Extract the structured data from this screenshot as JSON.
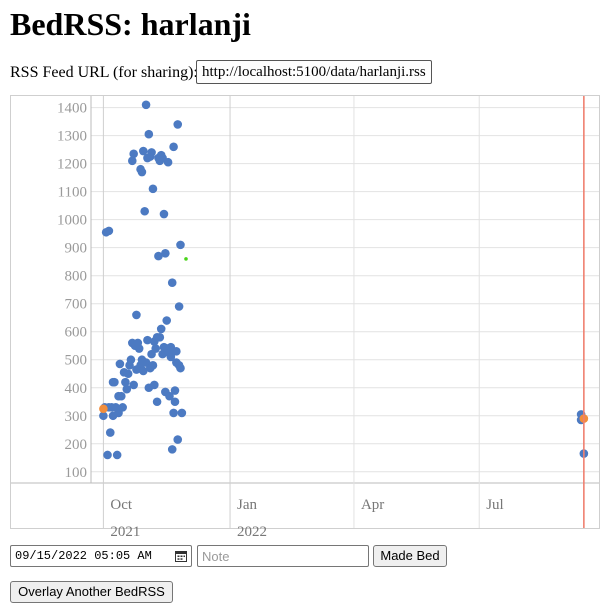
{
  "page": {
    "title": "BedRSS: harlanji"
  },
  "rss": {
    "label": "RSS Feed URL (for sharing):",
    "url": "http://localhost:5100/data/harlanji.rss"
  },
  "controls": {
    "datetime_value": "09/15/2022 05:05 AM",
    "note_placeholder": "Note",
    "made_bed_label": "Made Bed",
    "overlay_label": "Overlay Another BedRSS"
  },
  "colors": {
    "point": "#4c7ac2",
    "highlight": "#f28e3c",
    "marker_line": "#f08070",
    "small_point": "#49d41a",
    "grid": "#e2e2e2",
    "axis": "#bbbbbb"
  },
  "chart_data": {
    "type": "scatter",
    "title": "",
    "xlabel": "",
    "ylabel": "",
    "x_type": "date",
    "xlim": [
      "2021-09-22",
      "2022-09-26"
    ],
    "ylim": [
      60,
      1420
    ],
    "y_ticks": [
      100,
      200,
      300,
      400,
      500,
      600,
      700,
      800,
      900,
      1000,
      1100,
      1200,
      1300,
      1400
    ],
    "x_ticks": [
      {
        "date": "2021-10-01",
        "label": "Oct",
        "year": "2021"
      },
      {
        "date": "2022-01-01",
        "label": "Jan",
        "year": "2022"
      },
      {
        "date": "2022-04-01",
        "label": "Apr",
        "year": ""
      },
      {
        "date": "2022-07-01",
        "label": "Jul",
        "year": ""
      }
    ],
    "grid": true,
    "marker_line_date": "2022-09-15",
    "series": [
      {
        "role": "main",
        "color": "#4c7ac2",
        "points": [
          [
            "2021-10-01",
            300
          ],
          [
            "2021-10-02",
            330
          ],
          [
            "2021-10-03",
            955
          ],
          [
            "2021-10-04",
            160
          ],
          [
            "2021-10-05",
            960
          ],
          [
            "2021-10-05",
            330
          ],
          [
            "2021-10-06",
            240
          ],
          [
            "2021-10-07",
            330
          ],
          [
            "2021-10-08",
            420
          ],
          [
            "2021-10-08",
            300
          ],
          [
            "2021-10-09",
            420
          ],
          [
            "2021-10-10",
            330
          ],
          [
            "2021-10-11",
            160
          ],
          [
            "2021-10-12",
            370
          ],
          [
            "2021-10-12",
            310
          ],
          [
            "2021-10-13",
            485
          ],
          [
            "2021-10-14",
            370
          ],
          [
            "2021-10-15",
            330
          ],
          [
            "2021-10-16",
            455
          ],
          [
            "2021-10-17",
            420
          ],
          [
            "2021-10-18",
            395
          ],
          [
            "2021-10-19",
            450
          ],
          [
            "2021-10-20",
            480
          ],
          [
            "2021-10-21",
            500
          ],
          [
            "2021-10-22",
            1210
          ],
          [
            "2021-10-22",
            560
          ],
          [
            "2021-10-23",
            1235
          ],
          [
            "2021-10-23",
            410
          ],
          [
            "2021-10-24",
            550
          ],
          [
            "2021-10-25",
            660
          ],
          [
            "2021-10-25",
            465
          ],
          [
            "2021-10-26",
            560
          ],
          [
            "2021-10-27",
            540
          ],
          [
            "2021-10-28",
            1180
          ],
          [
            "2021-10-28",
            480
          ],
          [
            "2021-10-29",
            1170
          ],
          [
            "2021-10-29",
            500
          ],
          [
            "2021-10-30",
            1245
          ],
          [
            "2021-10-30",
            460
          ],
          [
            "2021-10-31",
            1030
          ],
          [
            "2021-11-01",
            1410
          ],
          [
            "2021-11-01",
            490
          ],
          [
            "2021-11-02",
            1220
          ],
          [
            "2021-11-02",
            570
          ],
          [
            "2021-11-03",
            1305
          ],
          [
            "2021-11-03",
            400
          ],
          [
            "2021-11-04",
            1225
          ],
          [
            "2021-11-04",
            470
          ],
          [
            "2021-11-05",
            1240
          ],
          [
            "2021-11-05",
            520
          ],
          [
            "2021-11-06",
            1110
          ],
          [
            "2021-11-06",
            480
          ],
          [
            "2021-11-07",
            410
          ],
          [
            "2021-11-07",
            565
          ],
          [
            "2021-11-08",
            540
          ],
          [
            "2021-11-09",
            580
          ],
          [
            "2021-11-09",
            350
          ],
          [
            "2021-11-10",
            1220
          ],
          [
            "2021-11-10",
            870
          ],
          [
            "2021-11-11",
            1210
          ],
          [
            "2021-11-11",
            580
          ],
          [
            "2021-11-12",
            1230
          ],
          [
            "2021-11-12",
            610
          ],
          [
            "2021-11-13",
            1220
          ],
          [
            "2021-11-13",
            520
          ],
          [
            "2021-11-14",
            1020
          ],
          [
            "2021-11-14",
            545
          ],
          [
            "2021-11-15",
            880
          ],
          [
            "2021-11-15",
            385
          ],
          [
            "2021-11-16",
            640
          ],
          [
            "2021-11-16",
            540
          ],
          [
            "2021-11-17",
            1205
          ],
          [
            "2021-11-17",
            530
          ],
          [
            "2021-11-18",
            525
          ],
          [
            "2021-11-18",
            370
          ],
          [
            "2021-11-19",
            510
          ],
          [
            "2021-11-19",
            545
          ],
          [
            "2021-11-20",
            180
          ],
          [
            "2021-11-20",
            775
          ],
          [
            "2021-11-21",
            1260
          ],
          [
            "2021-11-21",
            310
          ],
          [
            "2021-11-22",
            390
          ],
          [
            "2021-11-22",
            350
          ],
          [
            "2021-11-23",
            490
          ],
          [
            "2021-11-23",
            530
          ],
          [
            "2021-11-24",
            1340
          ],
          [
            "2021-11-24",
            215
          ],
          [
            "2021-11-25",
            690
          ],
          [
            "2021-11-25",
            480
          ],
          [
            "2021-11-26",
            910
          ],
          [
            "2021-11-26",
            470
          ],
          [
            "2021-11-27",
            310
          ],
          [
            "2022-09-13",
            305
          ],
          [
            "2022-09-13",
            285
          ],
          [
            "2022-09-15",
            165
          ]
        ]
      },
      {
        "role": "highlight",
        "color": "#f28e3c",
        "points": [
          [
            "2021-10-01",
            325
          ],
          [
            "2022-09-15",
            290
          ]
        ]
      },
      {
        "role": "small",
        "color": "#49d41a",
        "points": [
          [
            "2021-11-30",
            860
          ]
        ]
      }
    ]
  }
}
